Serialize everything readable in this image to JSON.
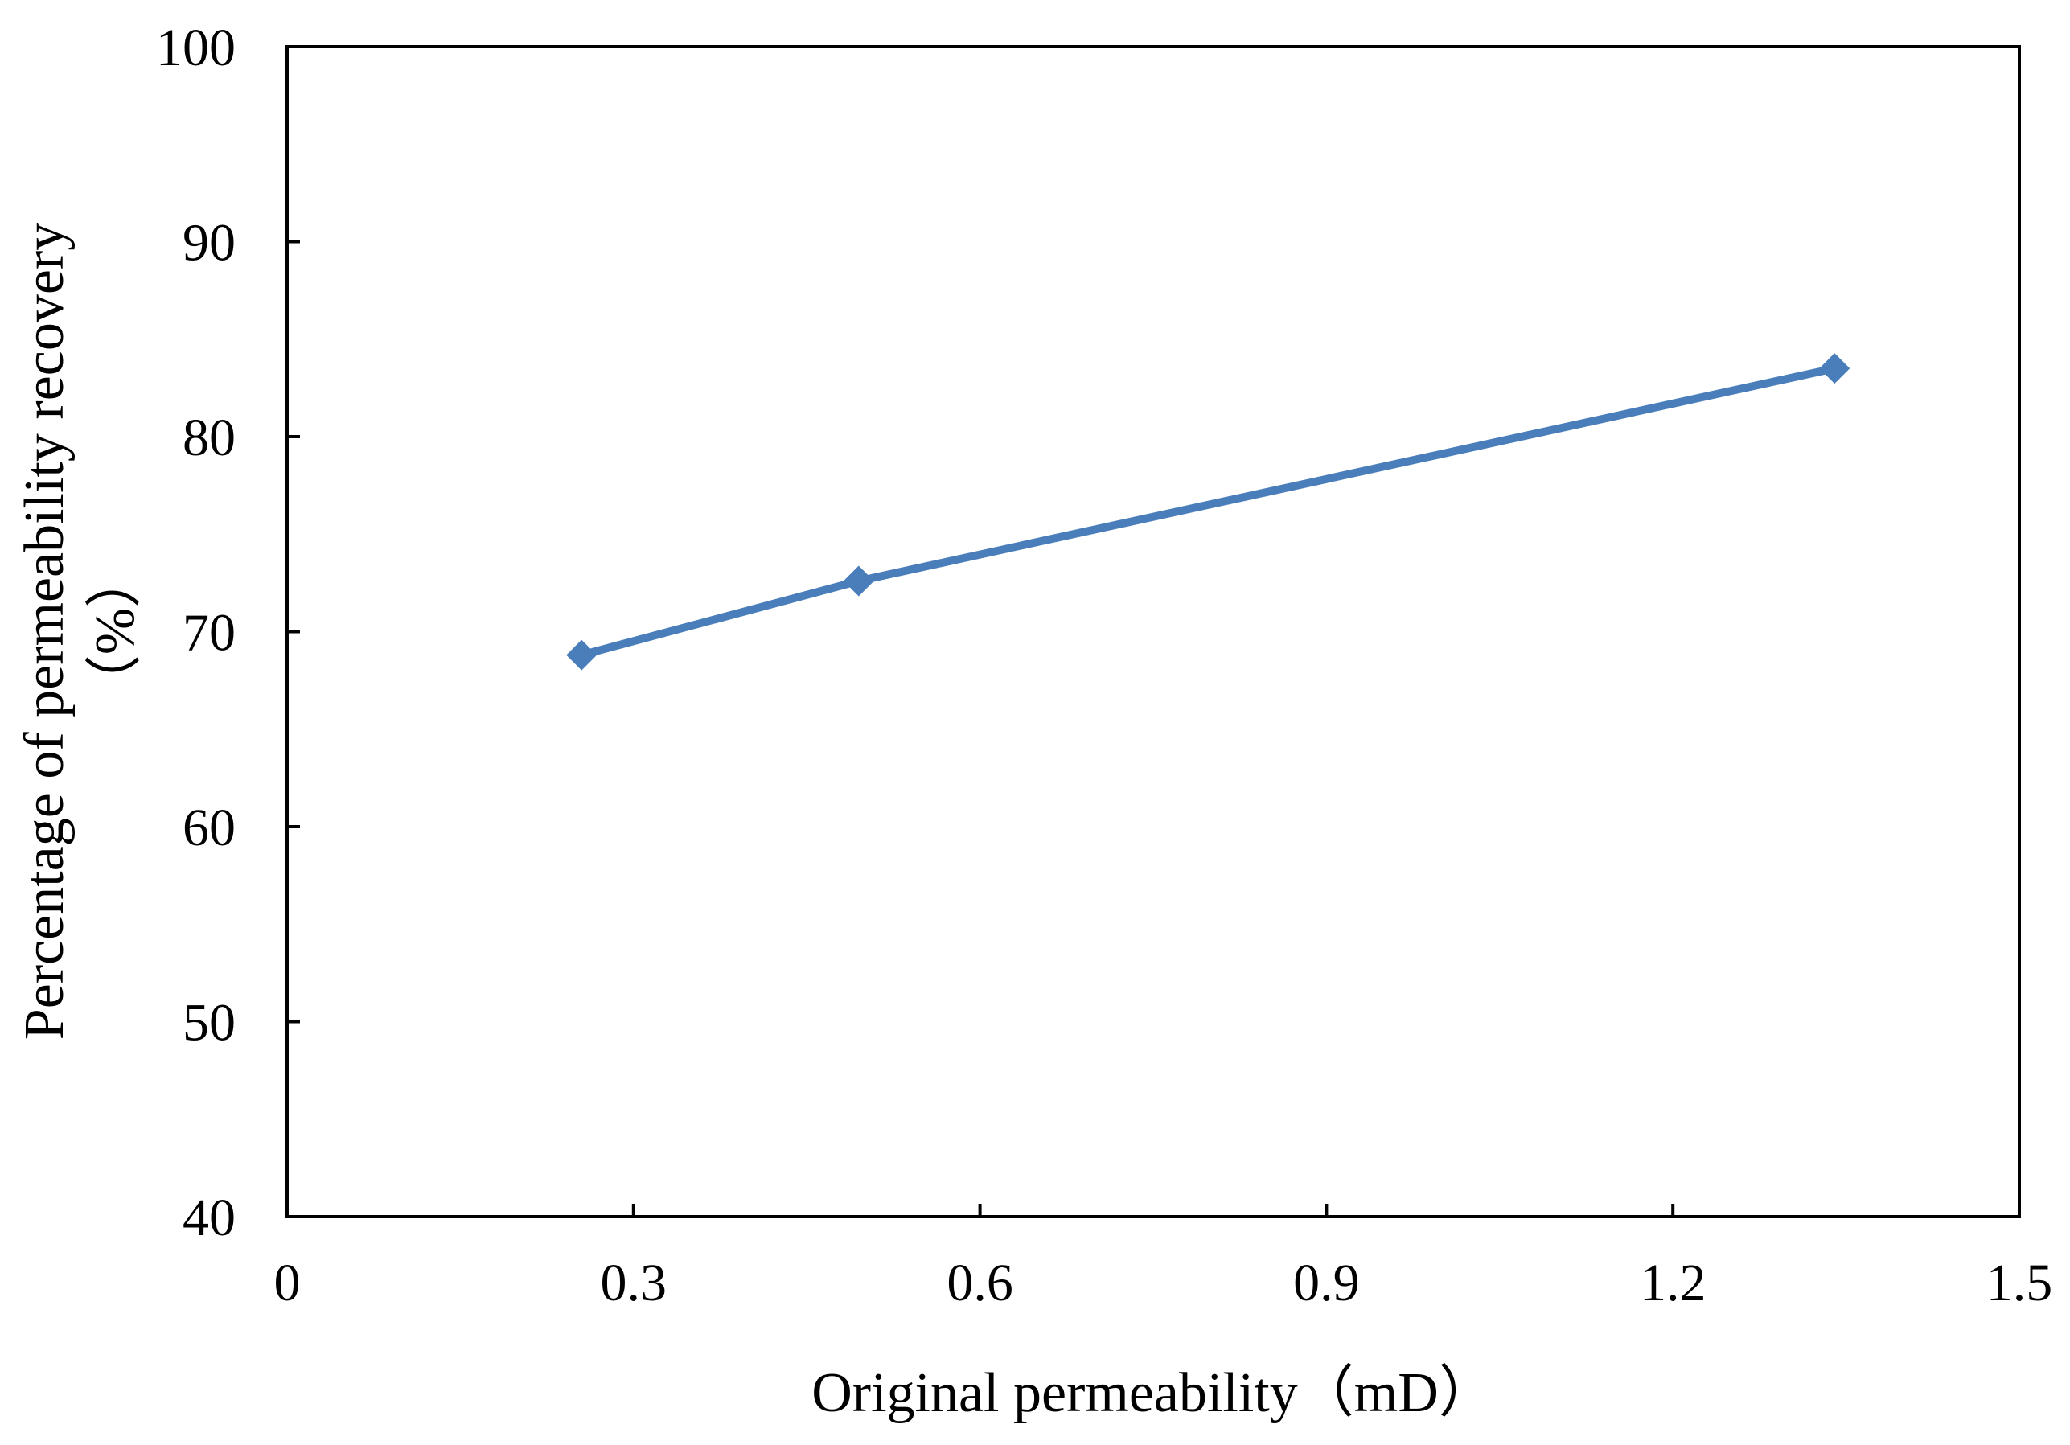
{
  "chart_data": {
    "type": "line",
    "title": "",
    "xlabel": "Original permeability（mD）",
    "ylabel_line1": "Percentage of permeability recovery",
    "ylabel_line2": "（%）",
    "xlim": [
      0,
      1.5
    ],
    "ylim": [
      40,
      100
    ],
    "x_ticks": [
      "0",
      "0.3",
      "0.6",
      "0.9",
      "1.2",
      "1.5"
    ],
    "y_ticks": [
      "40",
      "50",
      "60",
      "70",
      "80",
      "90",
      "100"
    ],
    "grid": false,
    "legend": "none",
    "series": [
      {
        "color": "#4a7ebb",
        "marker": "diamond",
        "points": [
          {
            "x": 0.255,
            "y": 68.8
          },
          {
            "x": 0.495,
            "y": 72.6
          },
          {
            "x": 1.34,
            "y": 83.5
          }
        ]
      }
    ]
  }
}
